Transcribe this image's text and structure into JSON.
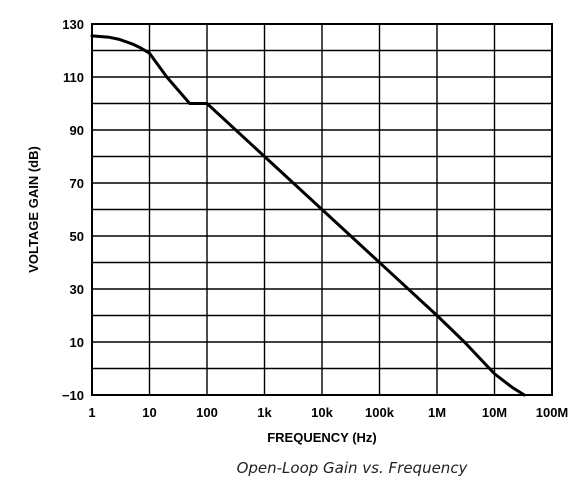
{
  "chart_data": {
    "type": "line",
    "title": "",
    "caption": "Open-Loop Gain vs. Frequency",
    "xlabel": "FREQUENCY (Hz)",
    "ylabel": "VOLTAGE GAIN (dB)",
    "x_scale": "log",
    "xlim": [
      1,
      100000000
    ],
    "ylim": [
      -10,
      130
    ],
    "grid": true,
    "x_ticks": [
      1,
      10,
      100,
      1000,
      10000,
      100000,
      1000000,
      10000000,
      100000000
    ],
    "x_tick_labels": [
      "1",
      "10",
      "100",
      "1k",
      "10k",
      "100k",
      "1M",
      "10M",
      "100M"
    ],
    "y_ticks": [
      -10,
      10,
      30,
      50,
      70,
      90,
      110,
      130
    ],
    "y_tick_labels": [
      "−10",
      "10",
      "30",
      "50",
      "70",
      "90",
      "110",
      "130"
    ],
    "series": [
      {
        "name": "",
        "x": [
          1,
          2,
          3,
          5,
          7,
          10,
          20,
          50,
          100,
          1000,
          10000,
          100000,
          1000000,
          3000000,
          10000000,
          20000000,
          33000000
        ],
        "y": [
          125.5,
          125,
          124.2,
          122.5,
          121,
          119,
          110,
          100,
          100,
          80,
          60,
          40,
          20,
          10,
          -2,
          -7,
          -10
        ]
      }
    ]
  }
}
